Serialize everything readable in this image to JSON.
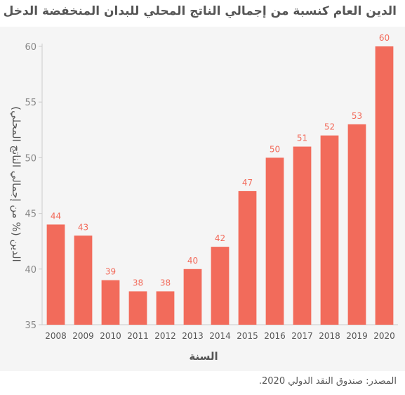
{
  "title": "الدين العام كنسبة من إجمالي الناتج المحلي للبدان المنخفضة الدخل",
  "source": "المصدر: صندوق النقد الدولي 2020.",
  "chart_data": {
    "type": "bar",
    "categories": [
      "2008",
      "2009",
      "2010",
      "2011",
      "2012",
      "2013",
      "2014",
      "2015",
      "2016",
      "2017",
      "2018",
      "2019",
      "2020"
    ],
    "values": [
      44,
      43,
      39,
      38,
      38,
      40,
      42,
      47,
      50,
      51,
      52,
      53,
      60
    ],
    "data_labels": [
      "44",
      "43",
      "39",
      "38",
      "38",
      "40",
      "42",
      "47",
      "50",
      "51",
      "52",
      "53",
      "60"
    ],
    "xlabel": "السنة",
    "ylabel": "الدين  (% من إجمالي الناتج المحلي)",
    "ylim": [
      35,
      60
    ],
    "yticks": [
      35,
      40,
      45,
      50,
      55,
      60
    ],
    "ytick_labels": [
      "35",
      "40",
      "45",
      "50",
      "55",
      "60"
    ],
    "grid": false,
    "colors": {
      "bar": "#f26b5b",
      "label": "#f26b5b",
      "axis_text": "#555555",
      "tick_text": "#888888"
    }
  }
}
